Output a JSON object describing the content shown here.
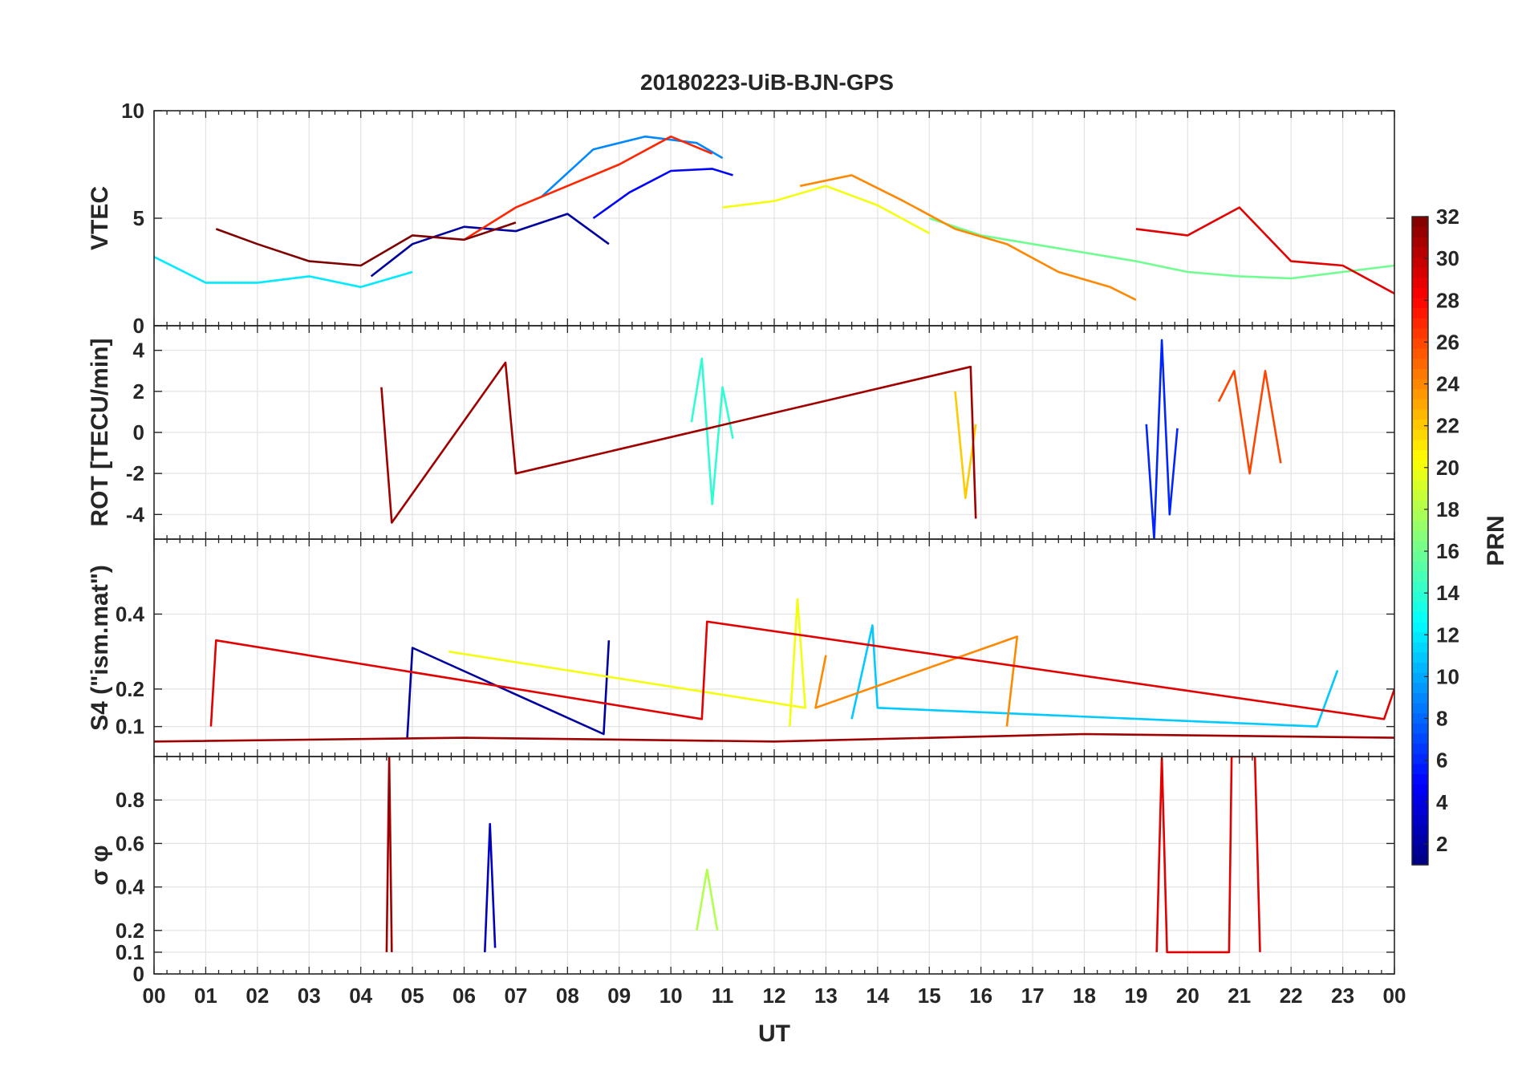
{
  "title": "20180223-UiB-BJN-GPS",
  "chart_data": [
    {
      "type": "line",
      "panel": "vtec",
      "ylabel": "VTEC",
      "ylim": [
        0,
        10
      ],
      "yticks": [
        0,
        5,
        10
      ],
      "ytick_labels": [
        "0",
        "5",
        "10"
      ],
      "xlim": [
        0,
        24
      ],
      "grid": true,
      "series": [
        {
          "name": "PRN 2",
          "prn": 2,
          "x": [
            4.2,
            5.0,
            6.0,
            7.0,
            8.0,
            8.8
          ],
          "y": [
            2.3,
            3.8,
            4.6,
            4.4,
            5.2,
            3.8
          ]
        },
        {
          "name": "PRN 5",
          "prn": 5,
          "x": [
            8.5,
            9.2,
            10.0,
            10.8,
            11.2
          ],
          "y": [
            5.0,
            6.2,
            7.2,
            7.3,
            7.0
          ]
        },
        {
          "name": "PRN 9",
          "prn": 9,
          "x": [
            7.5,
            8.5,
            9.5,
            10.5,
            11.0
          ],
          "y": [
            6.0,
            8.2,
            8.8,
            8.5,
            7.8
          ]
        },
        {
          "name": "PRN 12",
          "prn": 12,
          "x": [
            0.0,
            1.0,
            2.0,
            3.0,
            4.0,
            5.0
          ],
          "y": [
            3.2,
            2.0,
            2.0,
            2.3,
            1.8,
            2.5
          ]
        },
        {
          "name": "PRN 16",
          "prn": 16,
          "x": [
            15.0,
            16.0,
            17.0,
            18.0,
            19.0,
            20.0,
            21.0,
            22.0,
            23.0,
            24.0
          ],
          "y": [
            5.0,
            4.2,
            3.8,
            3.4,
            3.0,
            2.5,
            2.3,
            2.2,
            2.5,
            2.8
          ]
        },
        {
          "name": "PRN 20",
          "prn": 20,
          "x": [
            11.0,
            12.0,
            13.0,
            14.0,
            15.0
          ],
          "y": [
            5.5,
            5.8,
            6.5,
            5.6,
            4.3
          ]
        },
        {
          "name": "PRN 24",
          "prn": 24,
          "x": [
            12.5,
            13.5,
            14.5,
            15.5,
            16.5,
            17.5,
            18.5,
            19.0
          ],
          "y": [
            6.5,
            7.0,
            5.8,
            4.5,
            3.8,
            2.5,
            1.8,
            1.2
          ]
        },
        {
          "name": "PRN 27",
          "prn": 27,
          "x": [
            6.0,
            7.0,
            8.0,
            9.0,
            10.0,
            10.8
          ],
          "y": [
            4.0,
            5.5,
            6.5,
            7.5,
            8.8,
            8.0
          ]
        },
        {
          "name": "PRN 29",
          "prn": 29,
          "x": [
            19.0,
            20.0,
            21.0,
            22.0,
            23.0,
            24.0
          ],
          "y": [
            4.5,
            4.2,
            5.5,
            3.0,
            2.8,
            1.5
          ]
        },
        {
          "name": "PRN 32",
          "prn": 32,
          "x": [
            1.2,
            2.0,
            3.0,
            4.0,
            5.0,
            6.0,
            7.0
          ],
          "y": [
            4.5,
            3.8,
            3.0,
            2.8,
            4.2,
            4.0,
            4.8
          ]
        }
      ]
    },
    {
      "type": "line",
      "panel": "rot",
      "ylabel": "ROT [TECU/min]",
      "ylim": [
        -5.2,
        5.2
      ],
      "yticks": [
        -4,
        -2,
        0,
        2,
        4
      ],
      "ytick_labels": [
        "-4",
        "-2",
        "0",
        "2",
        "4"
      ],
      "xlim": [
        0,
        24
      ],
      "grid": true,
      "series": [
        {
          "name": "PRN 6",
          "prn": 6,
          "x": [
            19.2,
            19.35,
            19.5,
            19.65,
            19.8
          ],
          "y": [
            0.4,
            -5.2,
            4.5,
            -4.0,
            0.2
          ]
        },
        {
          "name": "PRN 14",
          "prn": 14,
          "x": [
            10.4,
            10.6,
            10.8,
            11.0,
            11.2
          ],
          "y": [
            0.5,
            3.6,
            -3.5,
            2.2,
            -0.3
          ]
        },
        {
          "name": "PRN 22",
          "prn": 22,
          "x": [
            15.5,
            15.7,
            15.9
          ],
          "y": [
            2.0,
            -3.2,
            0.4
          ]
        },
        {
          "name": "PRN 26",
          "prn": 26,
          "x": [
            20.6,
            20.9,
            21.2,
            21.5,
            21.8
          ],
          "y": [
            1.5,
            3.0,
            -2.0,
            3.0,
            -1.5
          ]
        },
        {
          "name": "PRN 31",
          "prn": 31,
          "x": [
            4.4,
            4.6,
            6.8,
            7.0,
            15.8,
            15.9
          ],
          "y": [
            2.2,
            -4.4,
            3.4,
            -2.0,
            3.2,
            -4.2
          ]
        }
      ]
    },
    {
      "type": "line",
      "panel": "s4",
      "ylabel": "S4 (\"ism.mat\")",
      "ylim": [
        0.02,
        0.6
      ],
      "yticks": [
        0.1,
        0.2,
        0.4
      ],
      "ytick_labels": [
        "0.1",
        "0.2",
        "0.4"
      ],
      "xlim": [
        0,
        24
      ],
      "grid": true,
      "series": [
        {
          "name": "PRN 2",
          "prn": 2,
          "x": [
            4.9,
            5.0,
            8.7,
            8.8
          ],
          "y": [
            0.07,
            0.31,
            0.08,
            0.33
          ]
        },
        {
          "name": "PRN 11",
          "prn": 11,
          "x": [
            13.5,
            13.9,
            14.0,
            22.5,
            22.9
          ],
          "y": [
            0.12,
            0.37,
            0.15,
            0.1,
            0.25
          ]
        },
        {
          "name": "PRN 20",
          "prn": 20,
          "x": [
            12.3,
            12.45,
            12.6,
            5.7
          ],
          "y": [
            0.1,
            0.44,
            0.15,
            0.3
          ]
        },
        {
          "name": "PRN 24",
          "prn": 24,
          "x": [
            16.5,
            16.7,
            12.8,
            13.0
          ],
          "y": [
            0.1,
            0.34,
            0.15,
            0.29
          ]
        },
        {
          "name": "PRN 29",
          "prn": 29,
          "x": [
            1.1,
            1.2,
            10.6,
            10.7,
            23.8,
            24.0
          ],
          "y": [
            0.1,
            0.33,
            0.12,
            0.38,
            0.12,
            0.2
          ]
        },
        {
          "name": "PRN 31",
          "prn": 31,
          "x": [
            0.0,
            6.0,
            12.0,
            18.0,
            24.0
          ],
          "y": [
            0.06,
            0.07,
            0.06,
            0.08,
            0.07
          ]
        }
      ]
    },
    {
      "type": "line",
      "panel": "sigma_phi",
      "ylabel": "σ φ",
      "ylim": [
        0,
        1
      ],
      "yticks": [
        0,
        0.1,
        0.2,
        0.4,
        0.6,
        0.8
      ],
      "ytick_labels": [
        "0",
        "0.1",
        "0.2",
        "0.4",
        "0.6",
        "0.8"
      ],
      "xlim": [
        0,
        24
      ],
      "grid": true,
      "series": [
        {
          "name": "PRN 3",
          "prn": 3,
          "x": [
            6.4,
            6.5,
            6.6
          ],
          "y": [
            0.1,
            0.69,
            0.12
          ]
        },
        {
          "name": "PRN 18",
          "prn": 18,
          "x": [
            10.5,
            10.7,
            10.9
          ],
          "y": [
            0.2,
            0.48,
            0.2
          ]
        },
        {
          "name": "PRN 29",
          "prn": 29,
          "x": [
            19.4,
            19.5,
            19.6,
            20.8,
            20.85,
            21.3,
            21.4
          ],
          "y": [
            0.1,
            1.0,
            0.1,
            0.1,
            1.0,
            1.0,
            0.1
          ]
        },
        {
          "name": "PRN 31",
          "prn": 31,
          "x": [
            4.5,
            4.55,
            4.6
          ],
          "y": [
            0.1,
            1.0,
            0.1
          ]
        }
      ]
    }
  ],
  "xaxis": {
    "label": "UT",
    "ticks": [
      0,
      1,
      2,
      3,
      4,
      5,
      6,
      7,
      8,
      9,
      10,
      11,
      12,
      13,
      14,
      15,
      16,
      17,
      18,
      19,
      20,
      21,
      22,
      23,
      24
    ],
    "tick_labels": [
      "00",
      "01",
      "02",
      "03",
      "04",
      "05",
      "06",
      "07",
      "08",
      "09",
      "10",
      "11",
      "12",
      "13",
      "14",
      "15",
      "16",
      "17",
      "18",
      "19",
      "20",
      "21",
      "22",
      "23",
      "00"
    ]
  },
  "colorbar": {
    "label": "PRN",
    "min": 1,
    "max": 32,
    "colormap": "jet",
    "ticks": [
      2,
      4,
      6,
      8,
      10,
      12,
      14,
      16,
      18,
      20,
      22,
      24,
      26,
      28,
      30,
      32
    ],
    "tick_labels": [
      "2",
      "4",
      "6",
      "8",
      "10",
      "12",
      "14",
      "16",
      "18",
      "20",
      "22",
      "24",
      "26",
      "28",
      "30",
      "32"
    ]
  }
}
